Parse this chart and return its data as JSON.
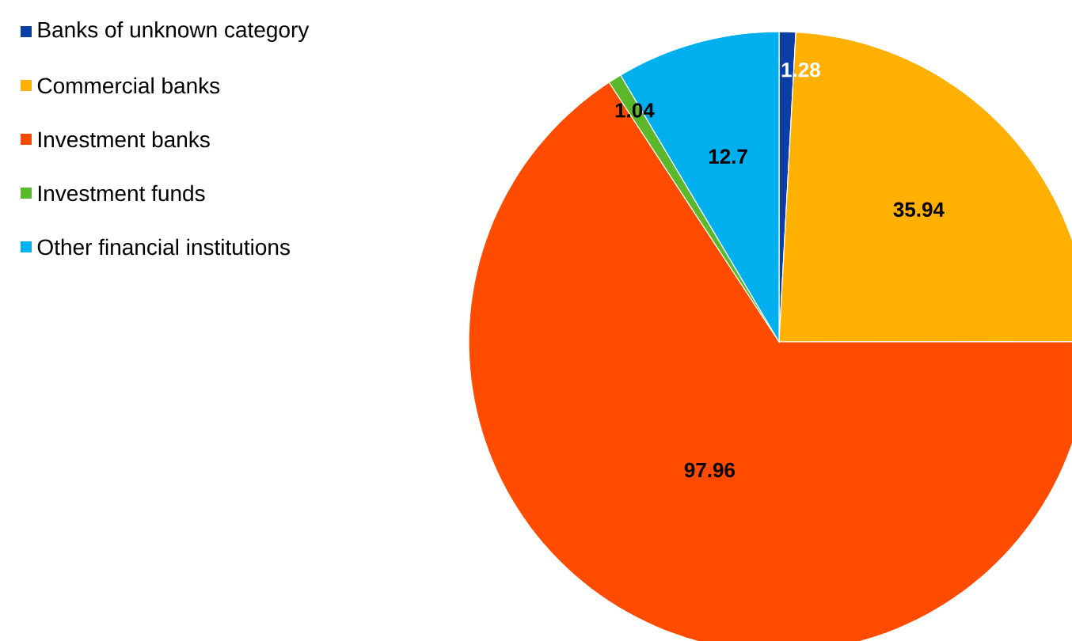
{
  "chart_data": {
    "type": "pie",
    "categories": [
      "Banks of unknown category",
      "Commercial banks",
      "Investment banks",
      "Investment funds",
      "Other financial institutions"
    ],
    "values": [
      1.28,
      35.94,
      97.96,
      1.04,
      12.7
    ],
    "colors": [
      "#0b3fa6",
      "#ffb000",
      "#ff4b00",
      "#5bb82a",
      "#00b0ee"
    ],
    "data_labels": true,
    "legend": "top left"
  }
}
